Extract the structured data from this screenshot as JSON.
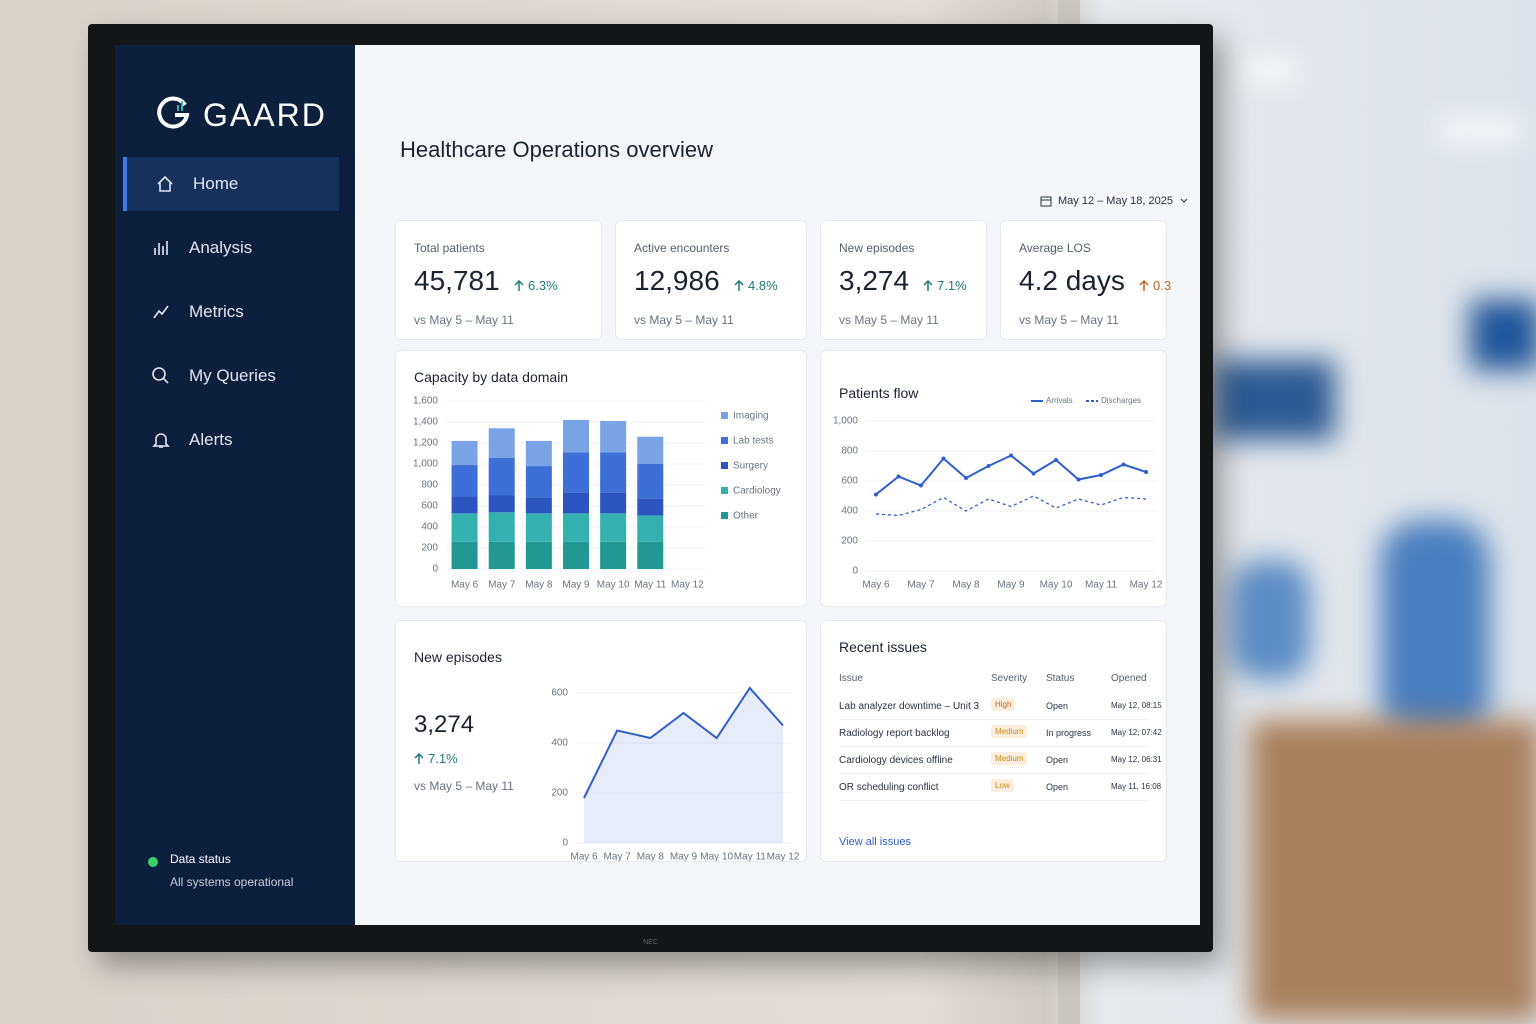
{
  "bezel_brand": "NEC",
  "sidebar": {
    "brand": "GAARD",
    "nav": [
      "Home",
      "Analysis",
      "Metrics",
      "My Queries",
      "Alerts"
    ],
    "status_title": "Data status",
    "status_text": "All systems operational"
  },
  "header": {
    "title": "Healthcare Operations overview",
    "date_range": "May 12 – May 18, 2025"
  },
  "kpis": [
    {
      "label": "Total patients",
      "value": "45,781",
      "change": "6.3%",
      "compare": "vs May 5 – May 11",
      "change_color": "#1f7a7a"
    },
    {
      "label": "Active encounters",
      "value": "12,986",
      "change": "4.8%",
      "compare": "vs May 5 – May 11",
      "change_color": "#1f7a7a"
    },
    {
      "label": "New episodes",
      "value": "3,274",
      "change": "7.1%",
      "compare": "vs May 5 – May 11",
      "change_color": "#1f7a7a"
    },
    {
      "label": "Average LOS",
      "value": "4.2 days",
      "change": "0.3",
      "compare": "vs May 5 – May 11",
      "change_color": "#c0662a"
    }
  ],
  "chart_data": [
    {
      "type": "stacked_bar",
      "title": "Capacity by data domain",
      "categories": [
        "May 6",
        "May 7",
        "May 8",
        "May 9",
        "May 10",
        "May 11",
        "May 12"
      ],
      "series": [
        {
          "name": "Imaging",
          "color": "#7aa3e6",
          "values": [
            230,
            280,
            240,
            310,
            300,
            260,
            null
          ]
        },
        {
          "name": "Lab tests",
          "color": "#3d6fd6",
          "values": [
            300,
            360,
            300,
            380,
            380,
            330,
            null
          ]
        },
        {
          "name": "Surgery",
          "color": "#2c55c0",
          "values": [
            160,
            160,
            150,
            200,
            200,
            160,
            null
          ]
        },
        {
          "name": "Cardiology",
          "color": "#35b0b0",
          "values": [
            270,
            280,
            270,
            270,
            270,
            250,
            null
          ]
        },
        {
          "name": "Other",
          "color": "#229893",
          "values": [
            260,
            260,
            260,
            260,
            260,
            260,
            null
          ]
        }
      ],
      "ylim": [
        0,
        1600
      ],
      "yticks": [
        0,
        200,
        400,
        600,
        800,
        {
          "value": 1000,
          "label": "1,000"
        },
        {
          "value": 1200,
          "label": "1,200"
        },
        {
          "value": 1400,
          "label": "1,400"
        },
        {
          "value": 1600,
          "label": "1,600"
        }
      ]
    },
    {
      "type": "line",
      "title": "Patients flow",
      "categories": [
        "May 6",
        null,
        "May 7",
        null,
        "May 8",
        null,
        "May 9",
        null,
        "May 10",
        null,
        "May 11",
        null,
        "May 12"
      ],
      "series": [
        {
          "name": "Arrivals",
          "color": "#2f5fcf",
          "style": "solid",
          "values": [
            510,
            630,
            570,
            750,
            620,
            700,
            770,
            650,
            740,
            610,
            640,
            710,
            660
          ]
        },
        {
          "name": "Discharges",
          "color": "#2f5fcf",
          "style": "dashed",
          "values": [
            380,
            370,
            410,
            490,
            400,
            480,
            430,
            500,
            420,
            480,
            440,
            490,
            480
          ]
        }
      ],
      "ylim": [
        0,
        1000
      ],
      "yticks": [
        0,
        200,
        400,
        600,
        800,
        {
          "value": 1000,
          "label": "1,000"
        }
      ]
    },
    {
      "type": "area",
      "title": "New episodes",
      "kpi_value": "3,274",
      "kpi_change": "7.1%",
      "kpi_compare": "vs May 5 – May 11",
      "categories": [
        "May 6",
        "May 7",
        "May 8",
        "May 9",
        "May 10",
        "May 11",
        "May 12"
      ],
      "values": [
        180,
        450,
        420,
        520,
        420,
        620,
        470
      ],
      "color": "#2f5fcf",
      "ylim": [
        0,
        600
      ],
      "yticks": [
        0,
        200,
        400,
        600
      ]
    }
  ],
  "issues": {
    "title": "Recent issues",
    "columns": [
      "Issue",
      "Severity",
      "Status",
      "Opened"
    ],
    "rows": [
      {
        "issue": "Lab analyzer downtime – Unit 3",
        "severity": "High",
        "severity_color": "#c0662a",
        "status": "Open",
        "opened": "May 12, 08:15"
      },
      {
        "issue": "Radiology report backlog",
        "severity": "Medium",
        "severity_color": "#c98a1a",
        "status": "In progress",
        "opened": "May 12, 07:42"
      },
      {
        "issue": "Cardiology devices offline",
        "severity": "Medium",
        "severity_color": "#c98a1a",
        "status": "Open",
        "opened": "May 12, 06:31"
      },
      {
        "issue": "OR scheduling conflict",
        "severity": "Low",
        "severity_color": "#c98a1a",
        "status": "Open",
        "opened": "May 11, 16:08"
      }
    ],
    "link": "View all issues"
  }
}
